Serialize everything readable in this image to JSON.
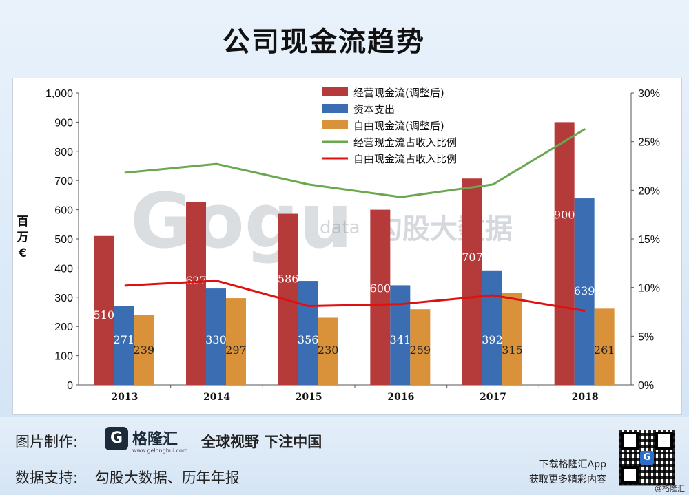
{
  "title": "公司现金流趋势",
  "chart_data": {
    "type": "bar",
    "categories": [
      "2013",
      "2014",
      "2015",
      "2016",
      "2017",
      "2018"
    ],
    "ylabel": "百\n万\n€",
    "ylim": [
      0,
      1000
    ],
    "yticks": [
      "0",
      "100",
      "200",
      "300",
      "400",
      "500",
      "600",
      "700",
      "800",
      "900",
      "1,000"
    ],
    "y2lim": [
      0,
      30
    ],
    "y2ticks": [
      "0%",
      "5%",
      "10%",
      "15%",
      "20%",
      "25%",
      "30%"
    ],
    "legend_position": "top-center",
    "grid": false,
    "series": [
      {
        "name": "经营现金流(调整后)",
        "kind": "bar",
        "color": "#b53a3a",
        "values": [
          510,
          627,
          586,
          600,
          707,
          900
        ],
        "labels": [
          "510",
          "627",
          "586",
          "600",
          "707",
          "900"
        ]
      },
      {
        "name": "资本支出",
        "kind": "bar",
        "color": "#3b6db3",
        "values": [
          271,
          330,
          356,
          341,
          392,
          639
        ],
        "labels": [
          "271",
          "330",
          "356",
          "341",
          "392",
          "639"
        ]
      },
      {
        "name": "自由现金流(调整后)",
        "kind": "bar",
        "color": "#d9923a",
        "values": [
          239,
          297,
          230,
          259,
          315,
          261
        ],
        "labels": [
          "239",
          "297",
          "230",
          "259",
          "315",
          "261"
        ]
      },
      {
        "name": "经营现金流占收入比例",
        "kind": "line",
        "axis": "right",
        "color": "#6aa84f",
        "values": [
          21.8,
          22.7,
          20.6,
          19.3,
          20.6,
          26.3
        ]
      },
      {
        "name": "自由现金流占收入比例",
        "kind": "line",
        "axis": "right",
        "color": "#e01010",
        "values": [
          10.2,
          10.7,
          8.1,
          8.3,
          9.2,
          7.6
        ]
      }
    ]
  },
  "watermark": {
    "brand": "Gogu",
    "data": "data",
    "cn": "勾股大数据"
  },
  "footer": {
    "made_label": "图片制作:",
    "logo_letter": "G",
    "logo_name": "格隆汇",
    "logo_url": "www.gelonghui.com",
    "slogan": "全球视野 下注中国",
    "support_label": "数据支持:",
    "support_value": "勾股大数据、历年年报",
    "download_line1": "下载格隆汇App",
    "download_line2": "获取更多精彩内容",
    "qr_letter": "G",
    "credit": "@格隆汇"
  }
}
